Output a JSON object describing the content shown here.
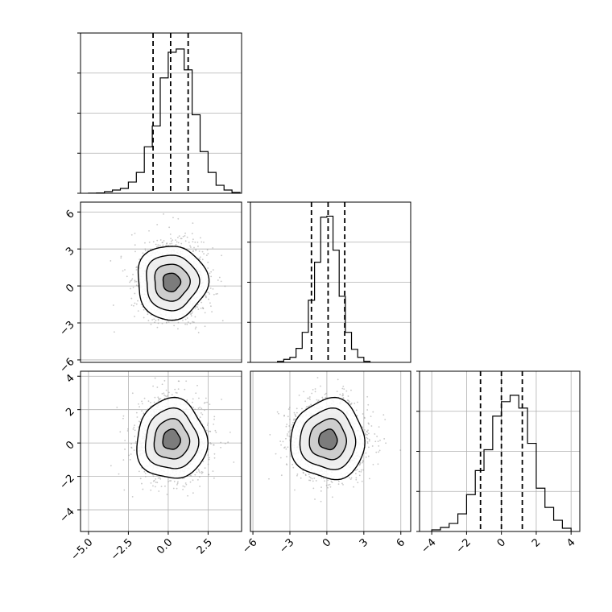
{
  "figure": {
    "background": "#ffffff",
    "axis_color": "#000000",
    "grid_color": "#b0b0b0",
    "hist_color": "#000000",
    "scatter_color": "#9a9a9a"
  },
  "chart_data": [
    {
      "type": "histogram",
      "panel": "row0-col0",
      "bin_edges": [
        -5.0,
        -4.5,
        -4.0,
        -3.5,
        -3.0,
        -2.5,
        -2.0,
        -1.5,
        -1.0,
        -0.5,
        0.0,
        0.5,
        1.0,
        1.5,
        2.0,
        2.5,
        3.0,
        3.5,
        4.0,
        4.5
      ],
      "counts": [
        1,
        2,
        10,
        20,
        30,
        70,
        130,
        290,
        420,
        720,
        880,
        900,
        770,
        490,
        260,
        130,
        50,
        20,
        5
      ],
      "quantiles": [
        -0.95,
        0.15,
        1.25
      ],
      "xlim": [
        -5.5,
        4.6
      ],
      "ylim": [
        0,
        1000
      ],
      "yticks": [
        0,
        250,
        500,
        750,
        1000
      ],
      "grid": true
    },
    {
      "type": "scatter-density",
      "panel": "row1-col0",
      "center": [
        0.2,
        0.3
      ],
      "sigma": [
        1.1,
        1.5
      ],
      "contour_radii_sigma": [
        0.5,
        1.0,
        1.5,
        2.0
      ],
      "xlim": [
        -5.5,
        4.6
      ],
      "ylim": [
        -6.2,
        6.8
      ],
      "yticks": [
        6,
        3,
        0,
        -3,
        -6
      ],
      "ytick_labels": [
        "6",
        "3",
        "0",
        "−3",
        "−6"
      ],
      "grid": true
    },
    {
      "type": "histogram",
      "panel": "row1-col1",
      "bin_edges": [
        -4.0,
        -3.5,
        -3.0,
        -2.5,
        -2.0,
        -1.5,
        -1.0,
        -0.5,
        0.0,
        0.5,
        1.0,
        1.5,
        2.0,
        2.5,
        3.0,
        3.5
      ],
      "counts": [
        10,
        30,
        50,
        140,
        300,
        620,
        1000,
        1450,
        1460,
        1120,
        660,
        300,
        130,
        50,
        10
      ],
      "quantiles": [
        -1.25,
        0.1,
        1.45
      ],
      "xlim": [
        -6.2,
        6.8
      ],
      "ylim": [
        0,
        1600
      ],
      "yticks": [
        0,
        400,
        800,
        1200,
        1600
      ],
      "grid": true
    },
    {
      "type": "scatter-density",
      "panel": "row2-col0",
      "center": [
        0.2,
        0.2
      ],
      "sigma": [
        1.1,
        1.2
      ],
      "contour_radii_sigma": [
        0.5,
        1.0,
        1.5,
        2.0
      ],
      "xlim": [
        -5.5,
        4.6
      ],
      "ylim": [
        -5.3,
        4.3
      ],
      "yticks": [
        4,
        2,
        0,
        -2,
        -4
      ],
      "ytick_labels": [
        "4",
        "2",
        "0",
        "−2",
        "−4"
      ],
      "xticks": [
        -5.0,
        -2.5,
        0.0,
        2.5
      ],
      "xtick_labels": [
        "−5.0",
        "−2.5",
        "0.0",
        "2.5"
      ],
      "grid": true
    },
    {
      "type": "scatter-density",
      "panel": "row2-col1",
      "center": [
        0.1,
        0.2
      ],
      "sigma": [
        1.5,
        1.2
      ],
      "contour_radii_sigma": [
        0.5,
        1.0,
        1.5,
        2.0
      ],
      "xlim": [
        -6.2,
        6.8
      ],
      "ylim": [
        -5.3,
        4.3
      ],
      "xticks": [
        -6,
        -3,
        0,
        3,
        6
      ],
      "xtick_labels": [
        "−6",
        "−3",
        "0",
        "3",
        "6"
      ],
      "grid": true
    },
    {
      "type": "histogram",
      "panel": "row2-col2",
      "bin_edges": [
        -4.0,
        -3.5,
        -3.0,
        -2.5,
        -2.0,
        -1.5,
        -1.0,
        -0.5,
        0.0,
        0.5,
        1.0,
        1.5,
        2.0,
        2.5,
        3.0,
        3.5,
        4.0
      ],
      "counts": [
        10,
        25,
        50,
        110,
        230,
        380,
        510,
        720,
        810,
        850,
        770,
        550,
        270,
        150,
        70,
        20
      ],
      "quantiles": [
        -1.2,
        0.0,
        1.2
      ],
      "xlim": [
        -4.7,
        4.5
      ],
      "ylim": [
        0,
        1000
      ],
      "yticks": [
        0,
        250,
        500,
        750,
        1000
      ],
      "xticks": [
        -4,
        -2,
        0,
        2,
        4
      ],
      "xtick_labels": [
        "−4",
        "−2",
        "0",
        "2",
        "4"
      ],
      "grid": true
    }
  ]
}
